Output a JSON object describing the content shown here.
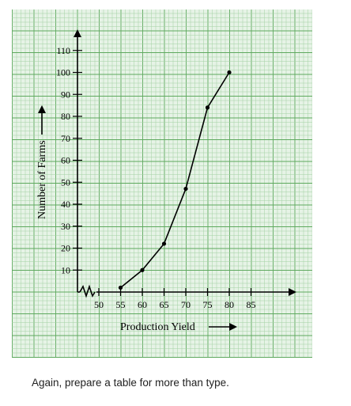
{
  "chart_data": {
    "type": "line",
    "x": [
      55,
      60,
      65,
      70,
      75,
      80
    ],
    "values": [
      2,
      10,
      22,
      47,
      84,
      100
    ],
    "xticks": [
      50,
      55,
      60,
      65,
      70,
      75,
      80,
      85
    ],
    "yticks": [
      10,
      20,
      30,
      40,
      50,
      60,
      70,
      80,
      90,
      100,
      110
    ],
    "xlabel": "Production Yield",
    "ylabel": "Number of Farms",
    "xlim": [
      45,
      90
    ],
    "ylim": [
      0,
      115
    ],
    "axis_break_x": true,
    "grid": true,
    "grid_color": "#5ea95e",
    "line_color": "#000000"
  },
  "caption": "Again, prepare a table for more than type."
}
